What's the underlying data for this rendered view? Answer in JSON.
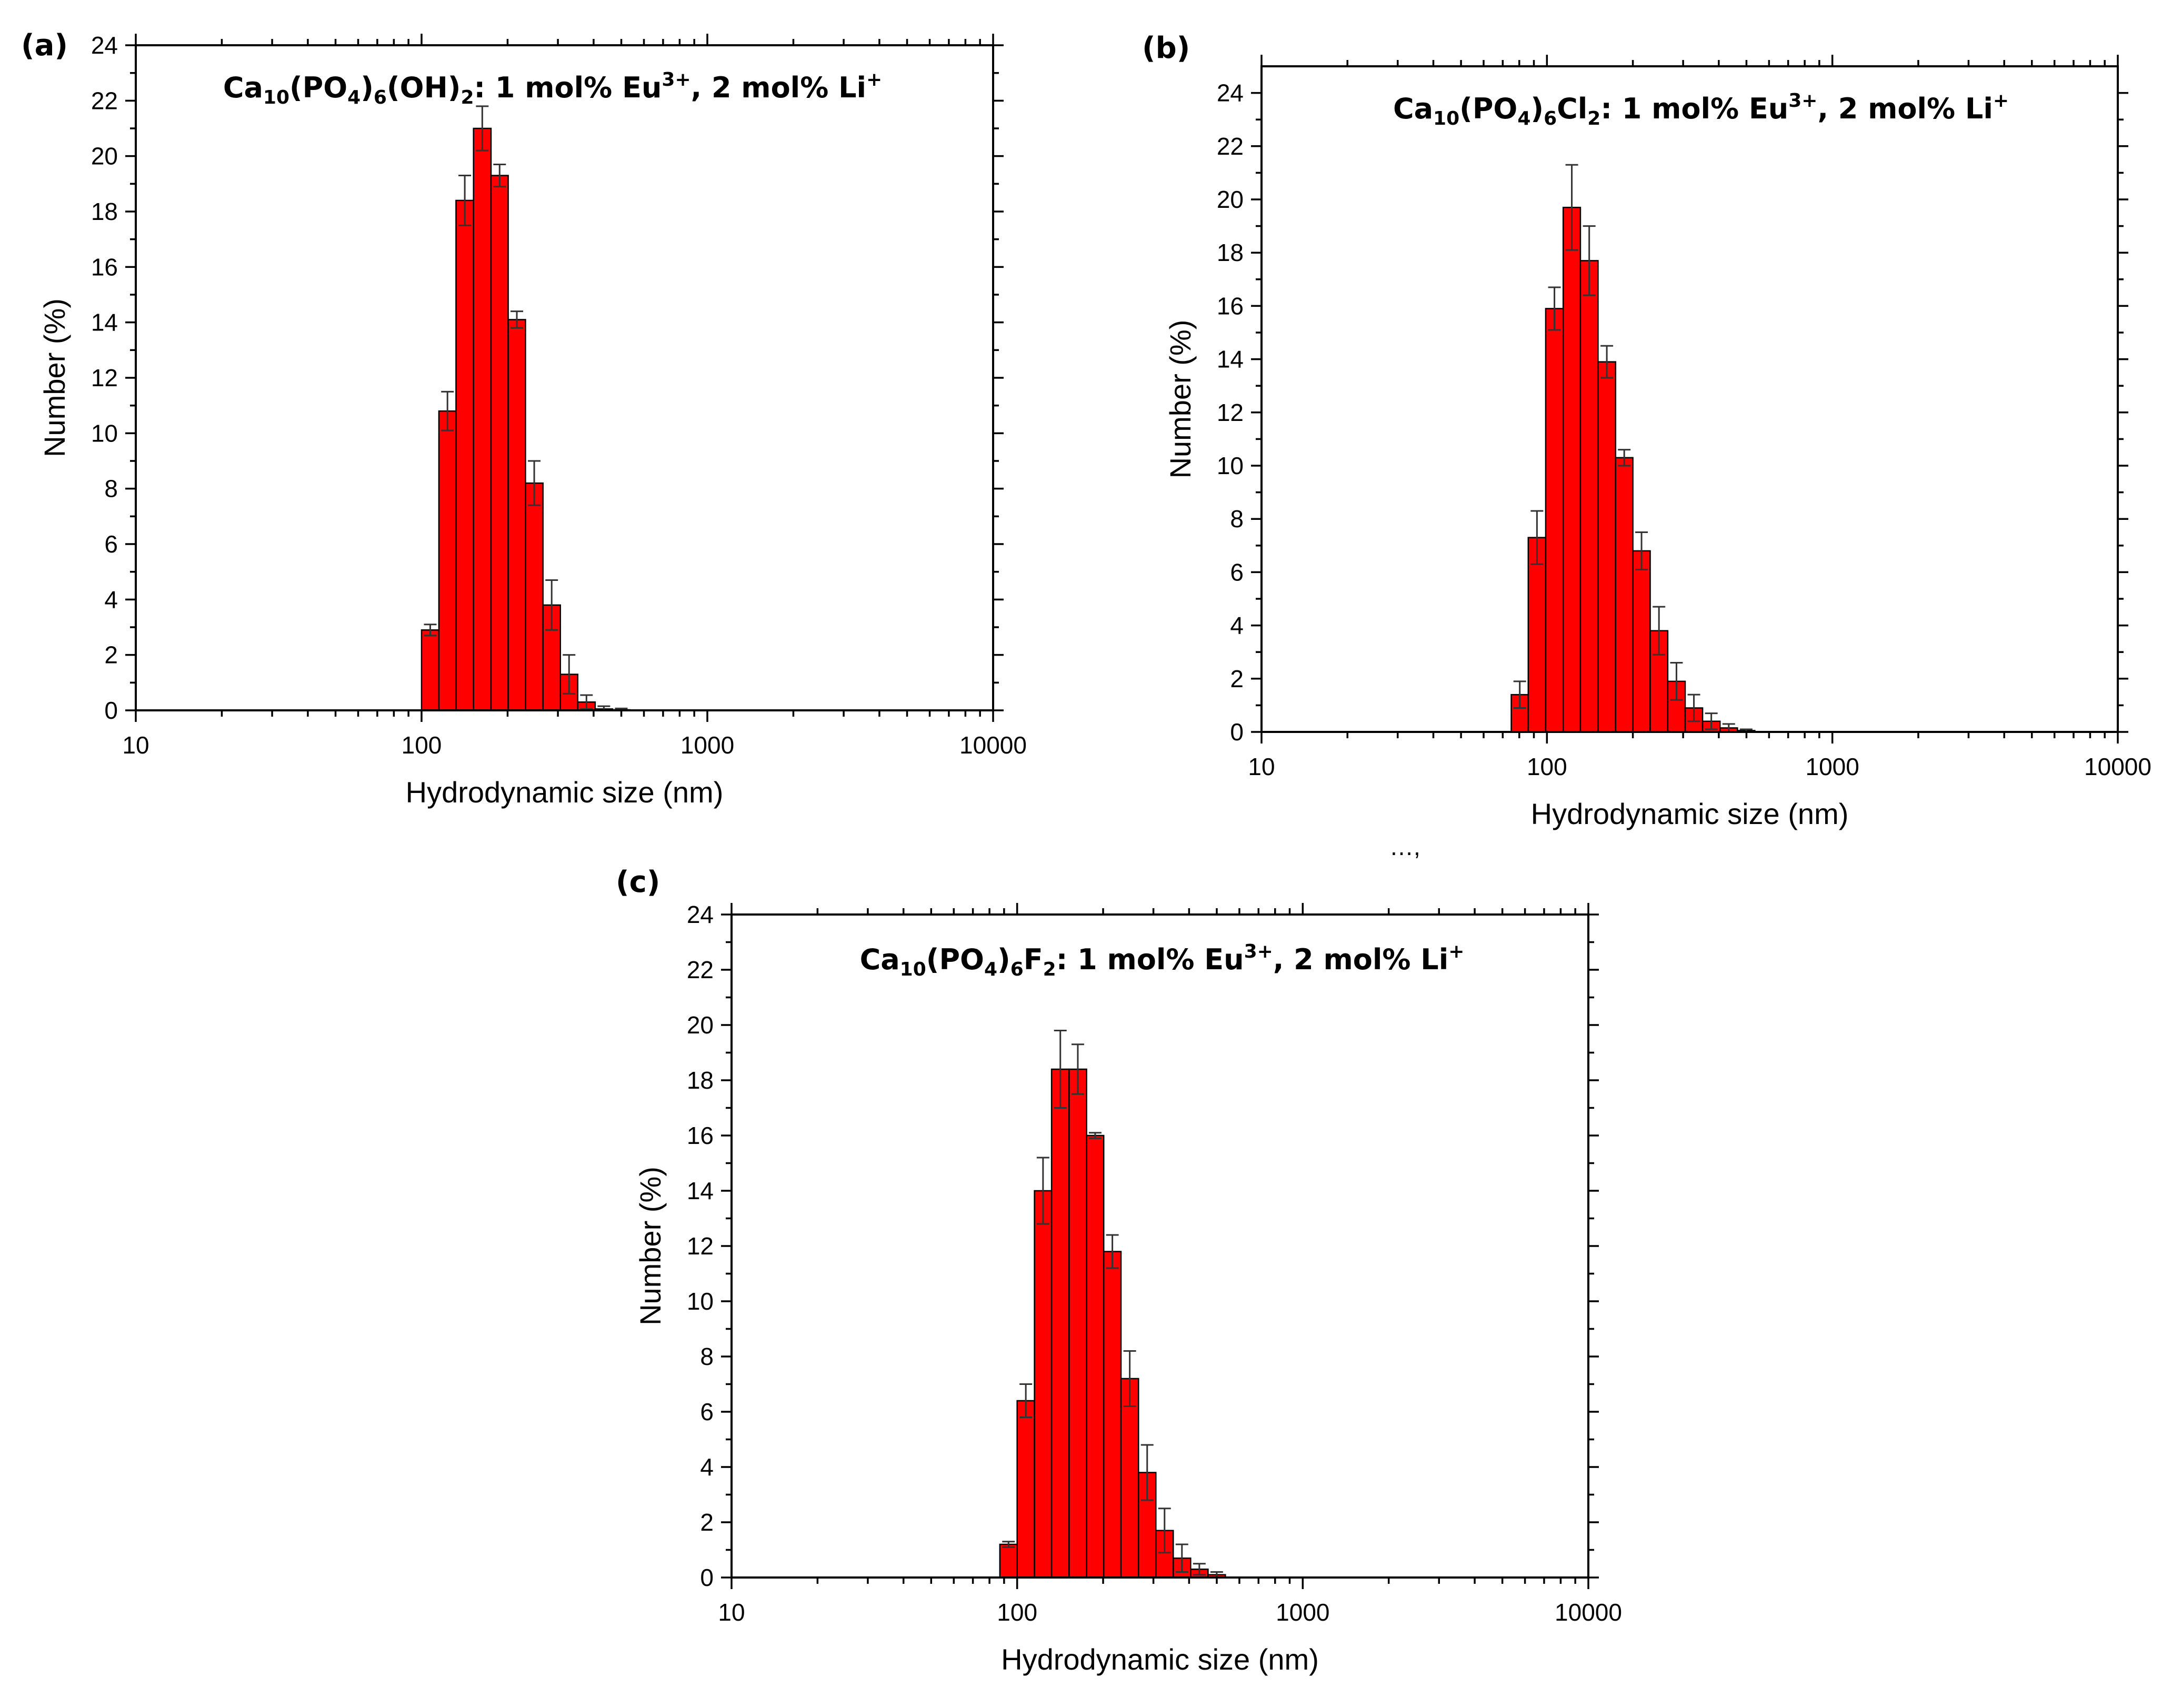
{
  "chart_data": [
    {
      "type": "bar",
      "panel_label": "(a)",
      "title": {
        "formula_parts": [
          "Ca",
          "10",
          "(PO",
          "4",
          ")",
          "6",
          "(OH)",
          "2"
        ],
        "rest": ": 1 mol% Eu",
        "ion1_sup": "3+",
        "sep": ", 2 mol% Li",
        "ion2_sup": "+"
      },
      "xlabel": "Hydrodynamic size (nm)",
      "ylabel": "Number (%)",
      "xscale": "log",
      "xlim": [
        10,
        10000
      ],
      "ylim": [
        0,
        24
      ],
      "x_ticks": [
        10,
        100,
        1000,
        10000
      ],
      "x_tick_labels": [
        "10",
        "100",
        "1000",
        "10000"
      ],
      "y_ticks": [
        0,
        2,
        4,
        6,
        8,
        10,
        12,
        14,
        16,
        18,
        20,
        22,
        24
      ],
      "y_tick_labels": [
        "0",
        "2",
        "4",
        "6",
        "8",
        "10",
        "12",
        "14",
        "16",
        "18",
        "20",
        "22",
        "24"
      ],
      "bin_edges": [
        100,
        115,
        132,
        152,
        175,
        201,
        231,
        266,
        306,
        352,
        405,
        466,
        536
      ],
      "values": [
        2.9,
        10.8,
        18.4,
        21.0,
        19.3,
        14.1,
        8.2,
        3.8,
        1.3,
        0.3,
        0.05,
        0.02
      ],
      "errors": [
        0.2,
        0.7,
        0.9,
        0.8,
        0.4,
        0.3,
        0.8,
        0.9,
        0.7,
        0.25,
        0.1,
        0.05
      ],
      "color": "#ff0000"
    },
    {
      "type": "bar",
      "panel_label": "(b)",
      "title": {
        "formula_parts": [
          "Ca",
          "10",
          "(PO",
          "4",
          ")",
          "6",
          "Cl",
          "2"
        ],
        "rest": ": 1 mol% Eu",
        "ion1_sup": "3+",
        "sep": ", 2 mol% Li",
        "ion2_sup": "+"
      },
      "xlabel": "Hydrodynamic size (nm)",
      "ylabel": "Number (%)",
      "xscale": "log",
      "xlim": [
        10,
        10000
      ],
      "ylim": [
        0,
        25
      ],
      "x_ticks": [
        10,
        100,
        1000,
        10000
      ],
      "x_tick_labels": [
        "10",
        "100",
        "1000",
        "10000"
      ],
      "y_ticks": [
        0,
        2,
        4,
        6,
        8,
        10,
        12,
        14,
        16,
        18,
        20,
        22,
        24
      ],
      "y_tick_labels": [
        "0",
        "2",
        "4",
        "6",
        "8",
        "10",
        "12",
        "14",
        "16",
        "18",
        "20",
        "22",
        "24"
      ],
      "bin_edges": [
        75,
        86,
        99,
        114,
        131,
        151,
        174,
        200,
        230,
        265,
        305,
        351,
        404,
        465,
        535
      ],
      "values": [
        1.4,
        7.3,
        15.9,
        19.7,
        17.7,
        13.9,
        10.3,
        6.8,
        3.8,
        1.9,
        0.9,
        0.4,
        0.15,
        0.05
      ],
      "errors": [
        0.5,
        1.0,
        0.8,
        1.6,
        1.3,
        0.6,
        0.3,
        0.7,
        0.9,
        0.7,
        0.5,
        0.3,
        0.15,
        0.05
      ],
      "color": "#ff0000"
    },
    {
      "type": "bar",
      "panel_label": "(c)",
      "title": {
        "formula_parts": [
          "Ca",
          "10",
          "(PO",
          "4",
          ")",
          "6",
          "F",
          "2"
        ],
        "rest": ": 1 mol% Eu",
        "ion1_sup": "3+",
        "sep": ", 2 mol% Li",
        "ion2_sup": "+"
      },
      "xlabel": "Hydrodynamic size (nm)",
      "ylabel": "Number (%)",
      "xscale": "log",
      "xlim": [
        10,
        10000
      ],
      "ylim": [
        0,
        24
      ],
      "x_ticks": [
        10,
        100,
        1000,
        10000
      ],
      "x_tick_labels": [
        "10",
        "100",
        "1000",
        "10000"
      ],
      "y_ticks": [
        0,
        2,
        4,
        6,
        8,
        10,
        12,
        14,
        16,
        18,
        20,
        22,
        24
      ],
      "y_tick_labels": [
        "0",
        "2",
        "4",
        "6",
        "8",
        "10",
        "12",
        "14",
        "16",
        "18",
        "20",
        "22",
        "24"
      ],
      "bin_edges": [
        87,
        100,
        115,
        132,
        152,
        175,
        201,
        231,
        266,
        306,
        352,
        405,
        466,
        536
      ],
      "values": [
        1.2,
        6.4,
        14.0,
        18.4,
        18.4,
        16.0,
        11.8,
        7.2,
        3.8,
        1.7,
        0.7,
        0.3,
        0.1
      ],
      "errors": [
        0.1,
        0.6,
        1.2,
        1.4,
        0.9,
        0.1,
        0.6,
        1.0,
        1.0,
        0.8,
        0.5,
        0.2,
        0.1
      ],
      "color": "#ff0000"
    }
  ],
  "stray_mark": "…,"
}
